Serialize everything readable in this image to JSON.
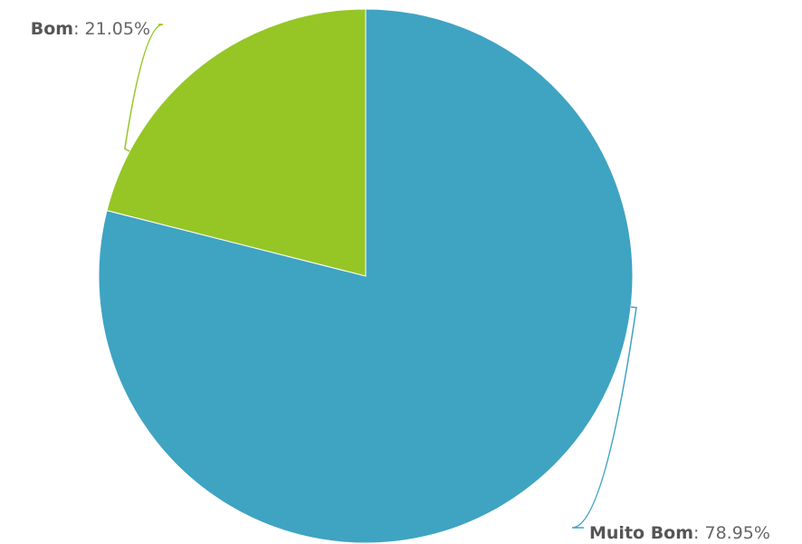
{
  "chart_data": {
    "type": "pie",
    "slices": [
      {
        "name": "Muito Bom",
        "value": 78.95,
        "value_label": "78.95%",
        "color": "#3fa3c2"
      },
      {
        "name": "Bom",
        "value": 21.05,
        "value_label": "21.05%",
        "color": "#95c626"
      }
    ],
    "label_separator": ": ",
    "title": "",
    "legend": "none",
    "data_labels": "outside-with-connectors"
  }
}
